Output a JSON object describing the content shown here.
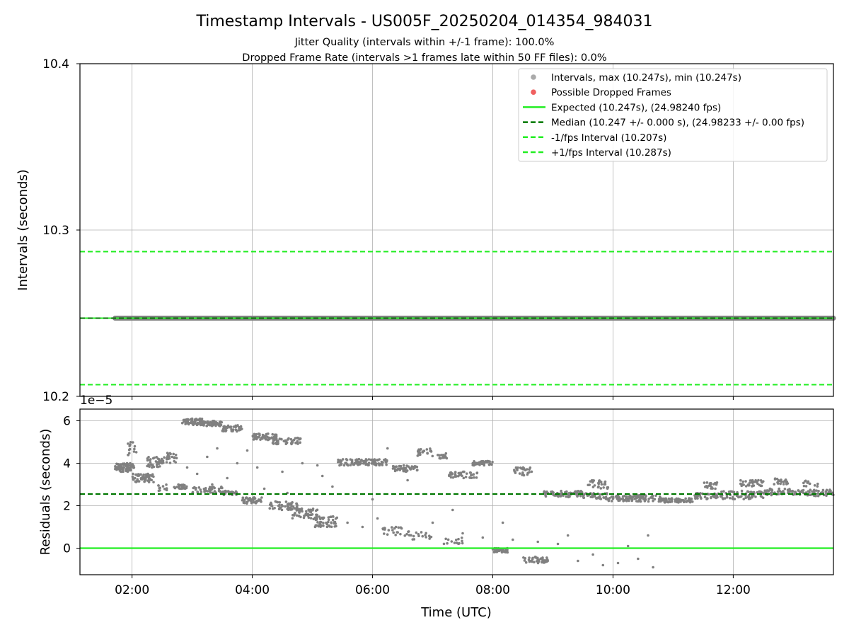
{
  "chart_data": [
    {
      "type": "scatter",
      "title": "Timestamp Intervals - US005F_20250204_014354_984031",
      "subtitles": [
        "Jitter Quality (intervals within +/-1 frame): 100.0%",
        "Dropped Frame Rate (intervals >1 frames late within 50 FF files): 0.0%"
      ],
      "xlabel": "",
      "ylabel": "Intervals (seconds)",
      "xlim": [
        "01:08",
        "13:40"
      ],
      "ylim": [
        10.2,
        10.4
      ],
      "yticks": [
        "10.2",
        "10.3",
        "10.4"
      ],
      "grid": true,
      "legend_placement": "top-right",
      "colors": {
        "intervals": "#808080",
        "dropped": "#f06060",
        "expected": "#22ee22",
        "median": "#007700",
        "bounds": "#22ee22"
      },
      "legend": [
        {
          "label": "Intervals, max (10.247s), min (10.247s)",
          "kind": "dot",
          "color": "#aaaaaa"
        },
        {
          "label": "Possible Dropped Frames",
          "kind": "dot",
          "color": "#f06060"
        },
        {
          "label": "Expected (10.247s), (24.98240 fps)",
          "kind": "solid",
          "color": "#22ee22"
        },
        {
          "label": "Median (10.247 +/- 0.000 s), (24.98233 +/- 0.00 fps)",
          "kind": "dashed",
          "color": "#007700"
        },
        {
          "label": "-1/fps Interval (10.207s)",
          "kind": "dashed",
          "color": "#22ee22"
        },
        {
          "label": "+1/fps Interval (10.287s)",
          "kind": "dashed",
          "color": "#22ee22"
        }
      ],
      "series": [
        {
          "name": "Intervals",
          "x_range": [
            "01:43",
            "13:40"
          ],
          "y": 10.247
        },
        {
          "name": "Expected",
          "y": 10.247
        },
        {
          "name": "Median",
          "y": 10.247
        },
        {
          "name": "-1/fps Interval",
          "y": 10.207
        },
        {
          "name": "+1/fps Interval",
          "y": 10.287
        }
      ]
    },
    {
      "type": "scatter",
      "xlabel": "Time (UTC)",
      "ylabel": "Residuals (seconds)",
      "y_scale_label": "1e−5",
      "xlim": [
        "01:08",
        "13:40"
      ],
      "ylim": [
        -1.25,
        6.55
      ],
      "xticks": [
        "02:00",
        "04:00",
        "06:00",
        "08:00",
        "10:00",
        "12:00"
      ],
      "yticks": [
        "0",
        "2",
        "4",
        "6"
      ],
      "grid": true,
      "lines": [
        {
          "name": "Expected",
          "y": 0,
          "style": "solid",
          "color": "#22ee22"
        },
        {
          "name": "Median",
          "y": 2.55,
          "style": "dashed",
          "color": "#007700"
        }
      ],
      "clusters": [
        {
          "x": [
            "01:43",
            "02:02"
          ],
          "y": [
            3.6,
            4.0
          ],
          "n": 80
        },
        {
          "x": [
            "01:55",
            "02:05"
          ],
          "y": [
            4.3,
            5.0
          ],
          "n": 14
        },
        {
          "x": [
            "02:00",
            "02:22"
          ],
          "y": [
            3.1,
            3.5
          ],
          "n": 60
        },
        {
          "x": [
            "02:15",
            "02:30"
          ],
          "y": [
            3.8,
            4.3
          ],
          "n": 40
        },
        {
          "x": [
            "02:30",
            "02:45"
          ],
          "y": [
            4.0,
            4.5
          ],
          "n": 25
        },
        {
          "x": [
            "02:25",
            "02:35"
          ],
          "y": [
            2.7,
            3.0
          ],
          "n": 12
        },
        {
          "x": [
            "02:42",
            "02:55"
          ],
          "y": [
            2.8,
            3.0
          ],
          "n": 25
        },
        {
          "x": [
            "02:50",
            "03:10"
          ],
          "y": [
            5.8,
            6.1
          ],
          "n": 70
        },
        {
          "x": [
            "03:10",
            "03:30"
          ],
          "y": [
            5.75,
            6.0
          ],
          "n": 55
        },
        {
          "x": [
            "03:30",
            "03:50"
          ],
          "y": [
            5.5,
            5.8
          ],
          "n": 45
        },
        {
          "x": [
            "03:00",
            "03:30"
          ],
          "y": [
            2.6,
            2.9
          ],
          "n": 40
        },
        {
          "x": [
            "03:30",
            "03:45"
          ],
          "y": [
            2.5,
            2.7
          ],
          "n": 30
        },
        {
          "x": [
            "03:50",
            "04:10"
          ],
          "y": [
            2.1,
            2.4
          ],
          "n": 45
        },
        {
          "x": [
            "04:00",
            "04:25"
          ],
          "y": [
            5.1,
            5.4
          ],
          "n": 60
        },
        {
          "x": [
            "04:20",
            "04:50"
          ],
          "y": [
            4.9,
            5.2
          ],
          "n": 50
        },
        {
          "x": [
            "04:15",
            "04:45"
          ],
          "y": [
            1.8,
            2.2
          ],
          "n": 55
        },
        {
          "x": [
            "04:40",
            "05:05"
          ],
          "y": [
            1.4,
            1.9
          ],
          "n": 50
        },
        {
          "x": [
            "05:00",
            "05:25"
          ],
          "y": [
            1.0,
            1.5
          ],
          "n": 55
        },
        {
          "x": [
            "05:25",
            "05:45"
          ],
          "y": [
            3.9,
            4.2
          ],
          "n": 35
        },
        {
          "x": [
            "05:45",
            "06:15"
          ],
          "y": [
            3.9,
            4.2
          ],
          "n": 70
        },
        {
          "x": [
            "06:20",
            "06:45"
          ],
          "y": [
            3.6,
            3.9
          ],
          "n": 45
        },
        {
          "x": [
            "06:45",
            "07:00"
          ],
          "y": [
            4.3,
            4.7
          ],
          "n": 25
        },
        {
          "x": [
            "07:05",
            "07:15"
          ],
          "y": [
            4.2,
            4.5
          ],
          "n": 18
        },
        {
          "x": [
            "07:15",
            "07:45"
          ],
          "y": [
            3.3,
            3.6
          ],
          "n": 40
        },
        {
          "x": [
            "07:40",
            "08:00"
          ],
          "y": [
            3.9,
            4.1
          ],
          "n": 40
        },
        {
          "x": [
            "06:10",
            "06:30"
          ],
          "y": [
            0.6,
            1.0
          ],
          "n": 20
        },
        {
          "x": [
            "06:30",
            "07:00"
          ],
          "y": [
            0.4,
            0.8
          ],
          "n": 22
        },
        {
          "x": [
            "07:10",
            "07:30"
          ],
          "y": [
            0.2,
            0.5
          ],
          "n": 15
        },
        {
          "x": [
            "08:00",
            "08:15"
          ],
          "y": [
            -0.2,
            0.0
          ],
          "n": 35
        },
        {
          "x": [
            "08:20",
            "08:40"
          ],
          "y": [
            3.4,
            3.8
          ],
          "n": 28
        },
        {
          "x": [
            "08:30",
            "08:55"
          ],
          "y": [
            -0.7,
            -0.4
          ],
          "n": 45
        },
        {
          "x": [
            "08:50",
            "09:30"
          ],
          "y": [
            2.4,
            2.7
          ],
          "n": 70
        },
        {
          "x": [
            "09:30",
            "09:55"
          ],
          "y": [
            2.3,
            2.6
          ],
          "n": 45
        },
        {
          "x": [
            "09:35",
            "09:55"
          ],
          "y": [
            2.8,
            3.2
          ],
          "n": 30
        },
        {
          "x": [
            "09:55",
            "10:50"
          ],
          "y": [
            2.2,
            2.5
          ],
          "n": 100
        },
        {
          "x": [
            "10:50",
            "11:20"
          ],
          "y": [
            2.15,
            2.35
          ],
          "n": 55
        },
        {
          "x": [
            "11:20",
            "11:45"
          ],
          "y": [
            2.3,
            2.6
          ],
          "n": 40
        },
        {
          "x": [
            "11:30",
            "11:50"
          ],
          "y": [
            2.8,
            3.1
          ],
          "n": 20
        },
        {
          "x": [
            "11:45",
            "12:30"
          ],
          "y": [
            2.3,
            2.7
          ],
          "n": 70
        },
        {
          "x": [
            "12:05",
            "12:30"
          ],
          "y": [
            2.9,
            3.2
          ],
          "n": 35
        },
        {
          "x": [
            "12:30",
            "13:00"
          ],
          "y": [
            2.5,
            2.8
          ],
          "n": 45
        },
        {
          "x": [
            "12:40",
            "12:55"
          ],
          "y": [
            3.0,
            3.3
          ],
          "n": 20
        },
        {
          "x": [
            "13:00",
            "13:40"
          ],
          "y": [
            2.45,
            2.75
          ],
          "n": 60
        },
        {
          "x": [
            "13:10",
            "13:25"
          ],
          "y": [
            2.9,
            3.2
          ],
          "n": 12
        }
      ],
      "scattered": [
        [
          "02:40",
          4.3
        ],
        [
          "02:55",
          3.8
        ],
        [
          "03:05",
          3.5
        ],
        [
          "03:15",
          4.3
        ],
        [
          "03:20",
          3.0
        ],
        [
          "03:25",
          4.7
        ],
        [
          "03:35",
          3.3
        ],
        [
          "03:45",
          4.0
        ],
        [
          "03:55",
          4.6
        ],
        [
          "04:05",
          3.8
        ],
        [
          "04:12",
          2.8
        ],
        [
          "04:30",
          3.6
        ],
        [
          "04:35",
          2.6
        ],
        [
          "05:10",
          3.4
        ],
        [
          "05:20",
          2.9
        ],
        [
          "05:35",
          1.2
        ],
        [
          "05:50",
          1.0
        ],
        [
          "06:05",
          1.4
        ],
        [
          "06:15",
          4.7
        ],
        [
          "06:35",
          3.2
        ],
        [
          "07:00",
          1.2
        ],
        [
          "07:20",
          1.8
        ],
        [
          "07:30",
          0.7
        ],
        [
          "07:50",
          0.5
        ],
        [
          "08:10",
          1.2
        ],
        [
          "08:20",
          0.4
        ],
        [
          "08:45",
          0.3
        ],
        [
          "09:05",
          0.2
        ],
        [
          "09:15",
          0.6
        ],
        [
          "09:25",
          -0.6
        ],
        [
          "09:40",
          -0.3
        ],
        [
          "09:50",
          -0.8
        ],
        [
          "10:05",
          -0.7
        ],
        [
          "10:15",
          0.1
        ],
        [
          "10:25",
          -0.5
        ],
        [
          "10:35",
          0.6
        ],
        [
          "10:40",
          -0.9
        ],
        [
          "04:50",
          4.0
        ],
        [
          "05:05",
          3.9
        ],
        [
          "06:00",
          2.3
        ]
      ]
    }
  ]
}
